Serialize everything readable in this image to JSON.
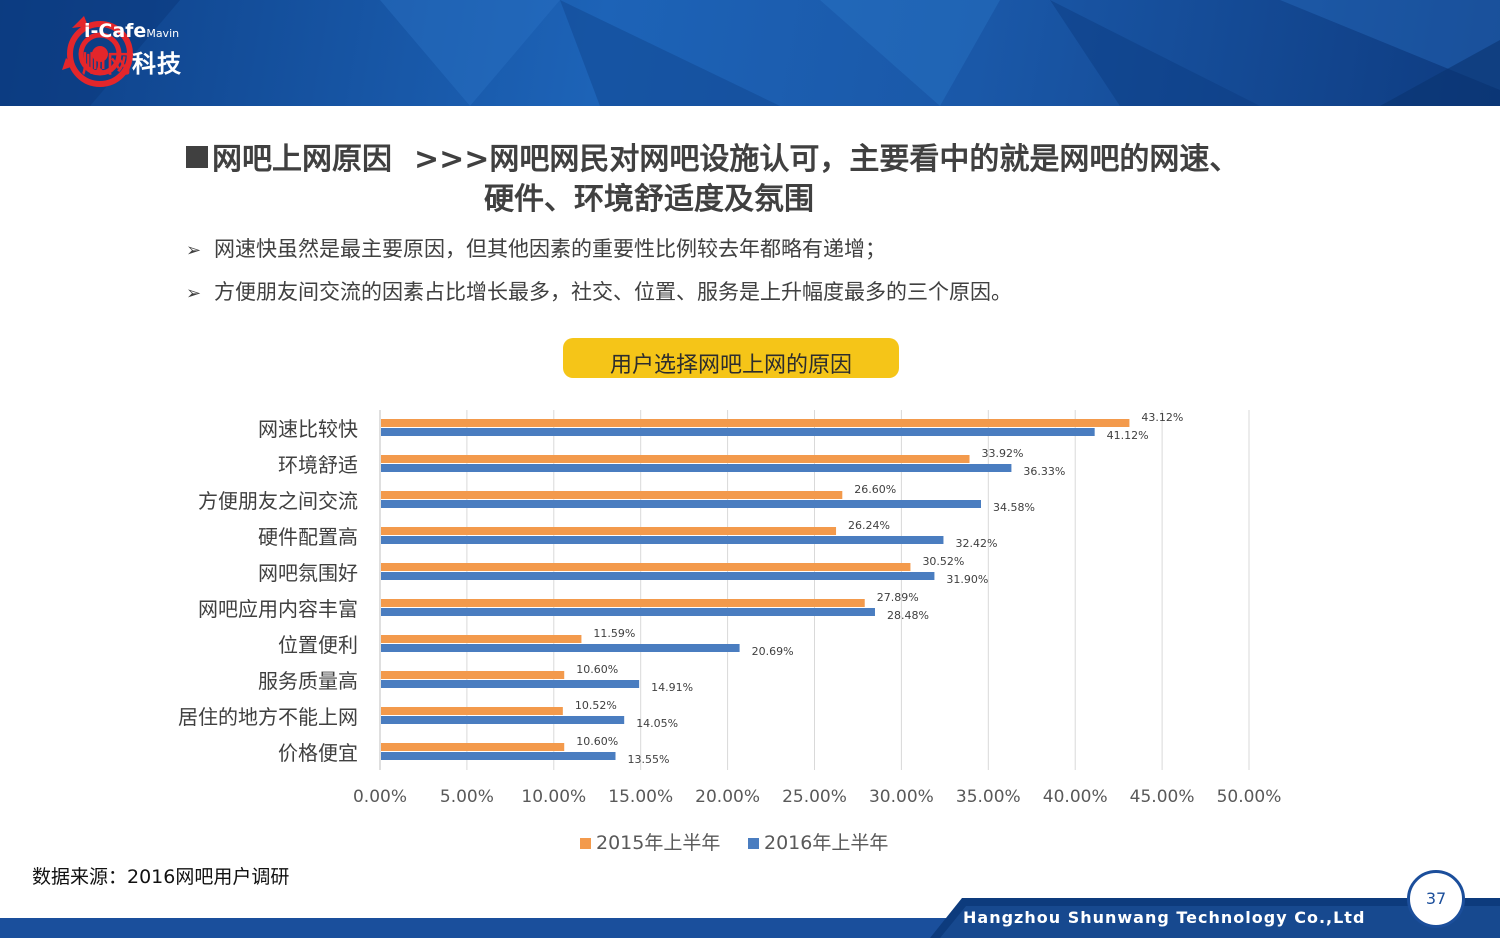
{
  "brand": {
    "logo_en": "i-Cafe",
    "logo_en_small": "Mavin",
    "logo_cn_red": "顺网",
    "logo_cn_rest": "科技"
  },
  "title": {
    "part1": "网吧上网原因",
    "part2": ">>>网吧网民对网吧设施认可，主要看中的就是网吧的网速、",
    "line2": "硬件、环境舒适度及氛围"
  },
  "bullets": [
    {
      "marker": "➢",
      "text": "网速快虽然是最主要原因，但其他因素的重要性比例较去年都略有递增；"
    },
    {
      "marker": "➢",
      "text": "方便朋友间交流的因素占比增长最多，社交、位置、服务是上升幅度最多的三个原因。"
    }
  ],
  "chart_title": "用户选择网吧上网的原因",
  "chart_data": {
    "type": "bar",
    "orientation": "horizontal",
    "title": "用户选择网吧上网的原因",
    "categories": [
      "网速比较快",
      "环境舒适",
      "方便朋友之间交流",
      "硬件配置高",
      "网吧氛围好",
      "网吧应用内容丰富",
      "位置便利",
      "服务质量高",
      "居住的地方不能上网",
      "价格便宜"
    ],
    "series": [
      {
        "name": "2015年上半年",
        "color": "#f39a4c",
        "values": [
          43.12,
          33.92,
          26.6,
          26.24,
          30.52,
          27.89,
          11.59,
          10.6,
          10.52,
          10.6
        ],
        "labels": [
          "43.12%",
          "33.92%",
          "26.60%",
          "26.24%",
          "30.52%",
          "27.89%",
          "11.59%",
          "10.60%",
          "10.52%",
          "10.60%"
        ]
      },
      {
        "name": "2016年上半年",
        "color": "#4a7dc0",
        "values": [
          41.12,
          36.33,
          34.58,
          32.42,
          31.9,
          28.48,
          20.69,
          14.91,
          14.05,
          13.55
        ],
        "labels": [
          "41.12%",
          "36.33%",
          "34.58%",
          "32.42%",
          "31.90%",
          "28.48%",
          "20.69%",
          "14.91%",
          "14.05%",
          "13.55%"
        ]
      }
    ],
    "xlim": [
      0,
      50
    ],
    "xticks": [
      "0.00%",
      "5.00%",
      "10.00%",
      "15.00%",
      "20.00%",
      "25.00%",
      "30.00%",
      "35.00%",
      "40.00%",
      "45.00%",
      "50.00%"
    ],
    "grid": true,
    "legend": "bottom"
  },
  "source": "数据来源：2016网吧用户调研",
  "footer": {
    "company": "Hangzhou Shunwang Technology Co.,Ltd",
    "page": "37"
  }
}
